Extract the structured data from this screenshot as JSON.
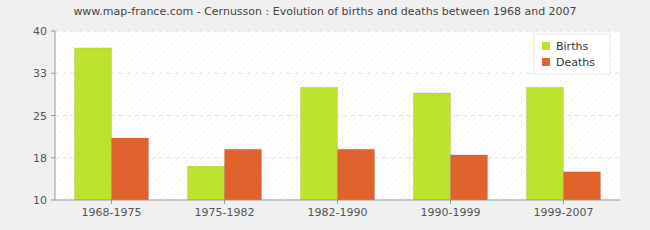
{
  "chart_data": {
    "type": "bar",
    "title": "www.map-france.com - Cernusson : Evolution of births and deaths between 1968 and 2007",
    "categories": [
      "1968-1975",
      "1975-1982",
      "1982-1990",
      "1990-1999",
      "1999-2007"
    ],
    "series": [
      {
        "name": "Births",
        "color": "#bde22e",
        "values": [
          37,
          16,
          30,
          29,
          30
        ]
      },
      {
        "name": "Deaths",
        "color": "#e0632e",
        "values": [
          21,
          19,
          19,
          18,
          15
        ]
      }
    ],
    "ylim": [
      10,
      40
    ],
    "yticks": [
      10,
      {
        "value": 17.5,
        "label": "18"
      },
      25,
      {
        "value": 32.5,
        "label": "33"
      },
      40
    ],
    "grid": true,
    "legend": "top-right"
  }
}
